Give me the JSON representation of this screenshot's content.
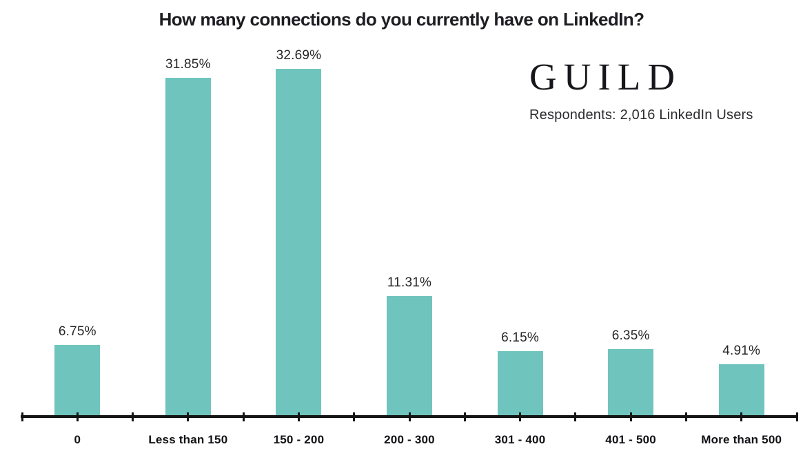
{
  "branding": {
    "logo_text": "GUILD",
    "respondents_label": "Respondents: 2,016 LinkedIn Users"
  },
  "chart_data": {
    "type": "bar",
    "title": "How many connections do you currently have on LinkedIn?",
    "categories": [
      "0",
      "Less than 150",
      "150 - 200",
      "200 - 300",
      "301 - 400",
      "401 - 500",
      "More than 500"
    ],
    "values": [
      6.75,
      31.85,
      32.69,
      11.31,
      6.15,
      6.35,
      4.91
    ],
    "value_labels": [
      "6.75%",
      "31.85%",
      "32.69%",
      "11.31%",
      "6.15%",
      "6.35%",
      "4.91%"
    ],
    "xlabel": "",
    "ylabel": "",
    "ylim": [
      0,
      35
    ],
    "grid": false,
    "legend_position": "none",
    "bar_color": "#6FC5BD",
    "axis_color": "#141414",
    "title_color": "#1c1c22",
    "label_color": "#262629",
    "category_label_color": "#121216"
  }
}
